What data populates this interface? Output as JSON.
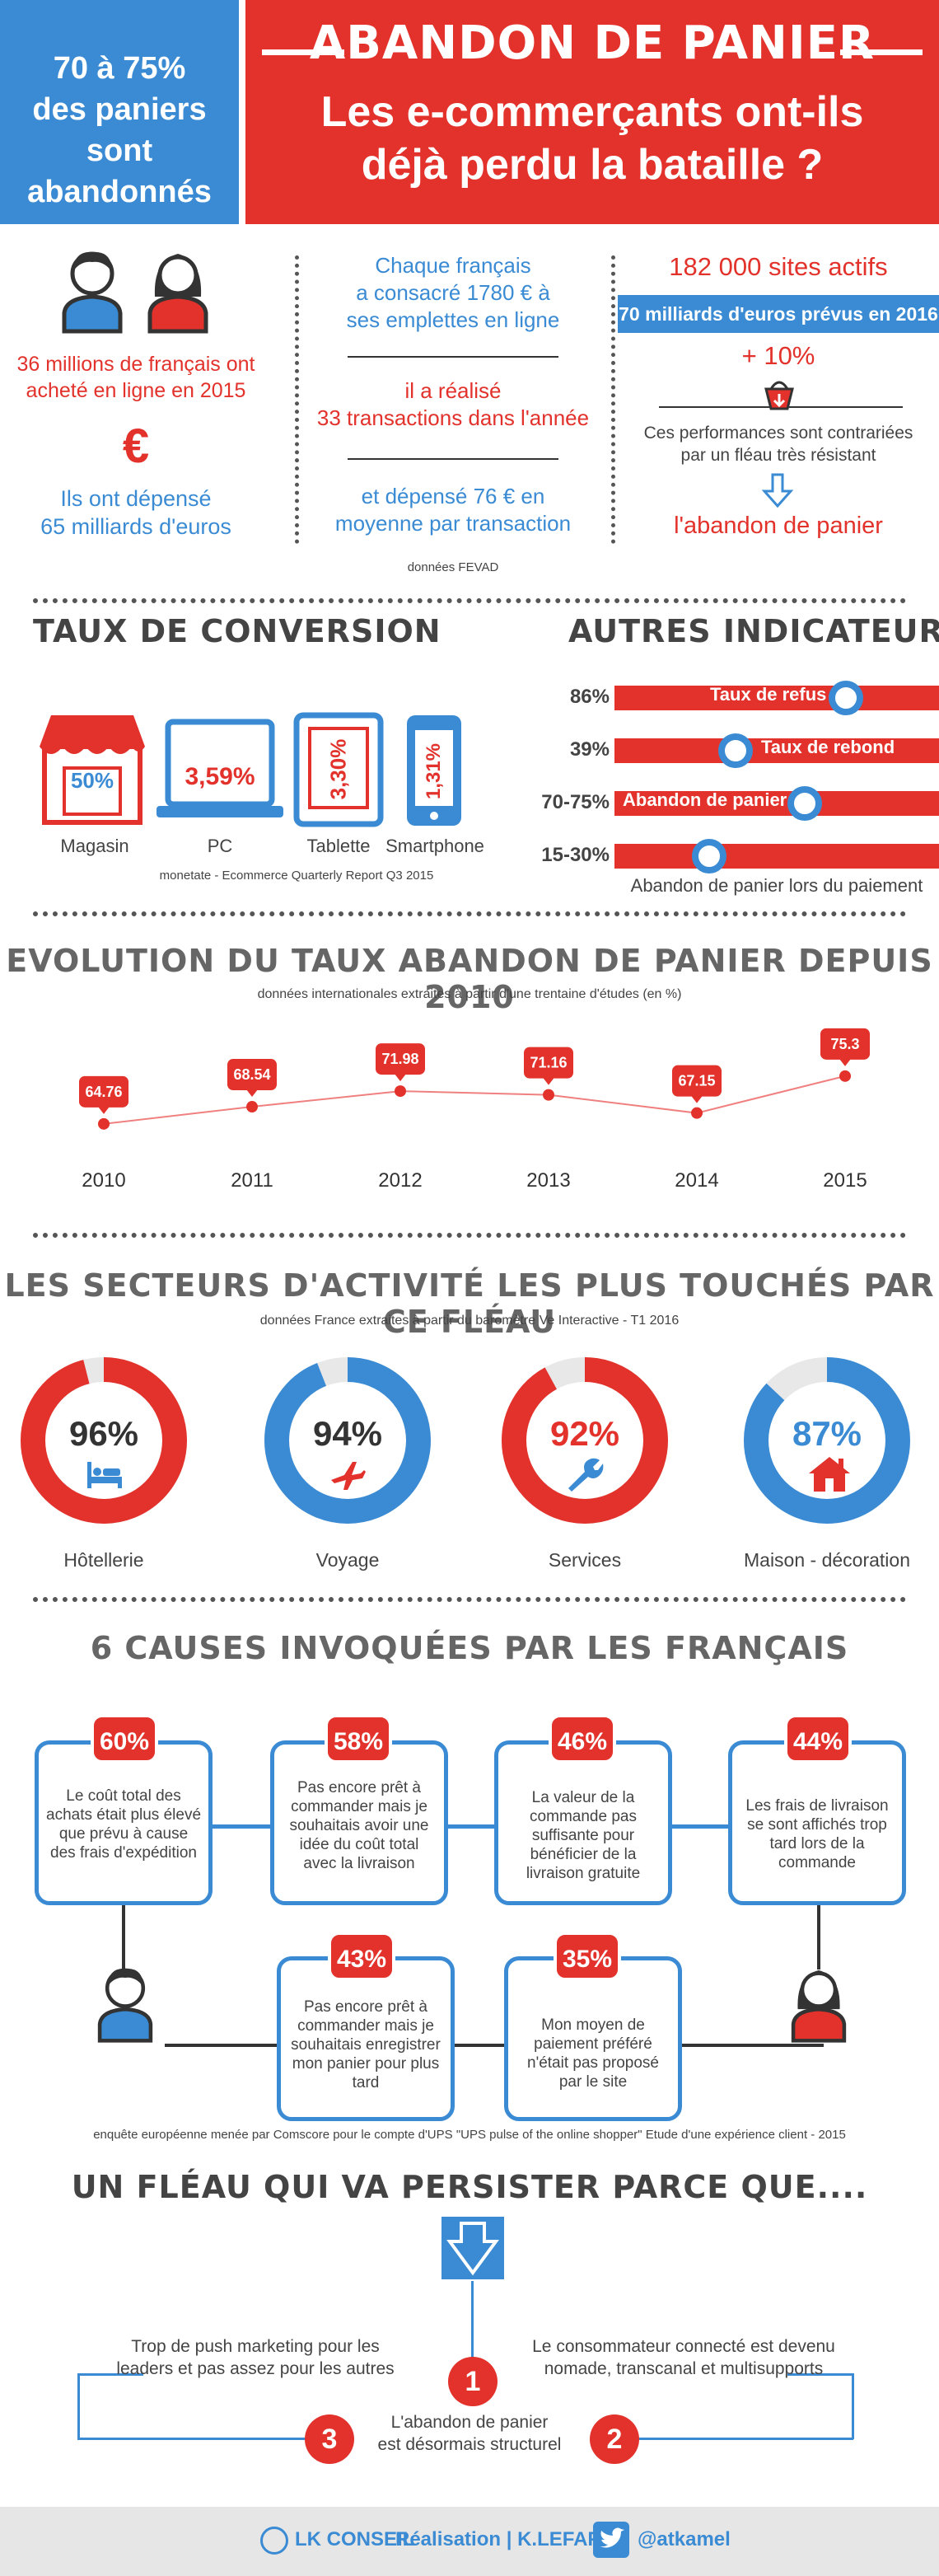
{
  "header": {
    "left_line1": "70 à 75%",
    "left_line2": "des paniers",
    "left_line3": "sont abandonnés",
    "title": "ABANDON DE PANIER",
    "subtitle_line1": "Les e-commerçants ont-ils",
    "subtitle_line2": "déjà perdu la bataille ?"
  },
  "stats": {
    "col1_text1": "36 millions de français ont",
    "col1_text2": "acheté en ligne en 2015",
    "col1_currency": "€",
    "col1_text3": "Ils ont dépensé",
    "col1_text4": "65 milliards d'euros",
    "col2_text1": "Chaque français",
    "col2_text2": "a consacré 1780 € à",
    "col2_text3": "ses emplettes en ligne",
    "col2_text4": "il a réalisé",
    "col2_text5": "33 transactions dans l'année",
    "col2_text6": "et dépensé 76 € en",
    "col2_text7": "moyenne par transaction",
    "col2_source": "données FEVAD",
    "col3_text1": "182 000 sites actifs",
    "col3_banner": "70 milliards d'euros prévus en 2016",
    "col3_growth": "+ 10%",
    "col3_text2": "Ces performances sont contrariées",
    "col3_text3": "par un fléau très résistant",
    "col3_text4": "l'abandon de panier"
  },
  "conversion": {
    "title": "TAUX DE CONVERSION",
    "items": [
      {
        "value": "50%",
        "label": "Magasin"
      },
      {
        "value": "3,59%",
        "label": "PC"
      },
      {
        "value": "3,30%",
        "label": "Tablette"
      },
      {
        "value": "1,31%",
        "label": "Smartphone"
      }
    ],
    "source": "monetate - Ecommerce Quarterly Report    Q3 2015"
  },
  "indicators": {
    "title": "AUTRES INDICATEURS CLÉS",
    "items": [
      {
        "value": "86%",
        "label": "Taux de refus"
      },
      {
        "value": "39%",
        "label": "Taux de rebond"
      },
      {
        "value": "70-75%",
        "label": "Abandon de panier"
      },
      {
        "value": "15-30%",
        "label": ""
      }
    ],
    "last_label": "Abandon de panier lors du paiement"
  },
  "evolution": {
    "title": "EVOLUTION DU TAUX ABANDON DE PANIER DEPUIS 2010",
    "subtitle": "données internationales extraites à partir d'une trentaine d'études (en %)"
  },
  "chart_data": {
    "type": "line",
    "categories": [
      "2010",
      "2011",
      "2012",
      "2013",
      "2014",
      "2015"
    ],
    "values": [
      64.76,
      68.54,
      71.98,
      71.16,
      67.15,
      75.3
    ],
    "ylim": [
      60,
      80
    ]
  },
  "sectors": {
    "title": "LES SECTEURS D'ACTIVITÉ LES PLUS TOUCHÉS PAR CE FLÉAU",
    "subtitle": "données France extraites à partir du baromètre Ve Interactive - T1 2016",
    "items": [
      {
        "value": "96%",
        "label": "Hôtellerie",
        "color": "#e2322b",
        "icon": "bed-icon"
      },
      {
        "value": "94%",
        "label": "Voyage",
        "color": "#3a8bd4",
        "icon": "plane-icon"
      },
      {
        "value": "92%",
        "label": "Services",
        "color": "#e2322b",
        "icon": "wrench-icon"
      },
      {
        "value": "87%",
        "label": "Maison - décoration",
        "color": "#3a8bd4",
        "icon": "house-icon"
      }
    ]
  },
  "causes": {
    "title": "6 CAUSES INVOQUÉES PAR LES FRANÇAIS",
    "items": [
      {
        "value": "60%",
        "text": "Le coût total des achats était plus élevé que prévu à cause des frais d'expédition"
      },
      {
        "value": "58%",
        "text": "Pas encore prêt à commander mais je souhaitais avoir une idée du coût total avec la livraison"
      },
      {
        "value": "46%",
        "text": "La valeur de la commande pas suffisante pour bénéficier de la livraison gratuite"
      },
      {
        "value": "44%",
        "text": "Les frais de livraison se sont affichés trop tard lors de la commande"
      },
      {
        "value": "43%",
        "text": "Pas encore prêt à commander mais je souhaitais enregistrer mon panier pour plus tard"
      },
      {
        "value": "35%",
        "text": "Mon moyen de paiement préféré n'était pas proposé par le site"
      }
    ],
    "source": "enquête européenne menée par Comscore pour le compte d'UPS \"UPS pulse of the online shopper\" Etude d'une expérience client - 2015"
  },
  "persist": {
    "title": "UN FLÉAU QUI VA PERSISTER PARCE QUE....",
    "item1_num": "1",
    "item1_text1": "L'abandon de panier",
    "item1_text2": "est désormais structurel",
    "item2_num": "2",
    "item2_text1": "Le consommateur connecté est devenu",
    "item2_text2": "nomade, transcanal et multisupports",
    "item3_num": "3",
    "item3_text1": "Trop de push marketing pour les",
    "item3_text2": "leaders et pas assez pour les autres"
  },
  "footer": {
    "brand": "LK CONSEIL",
    "credit": "Réalisation | K.LEFAFTA",
    "twitter": "@atkamel"
  }
}
